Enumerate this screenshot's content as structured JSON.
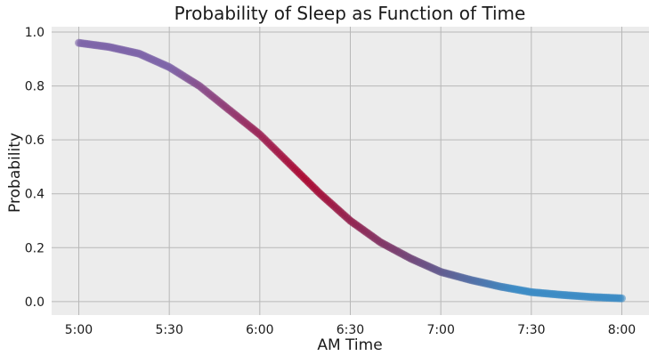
{
  "chart_data": {
    "type": "scatter",
    "title": "Probability of Sleep as Function of Time",
    "xlabel": "AM Time",
    "ylabel": "Probability",
    "x_unit": "minutes after 5:00",
    "xlim": [
      -9,
      189
    ],
    "ylim": [
      -0.05,
      1.02
    ],
    "x_ticks": [
      {
        "value": 0,
        "label": "5:00"
      },
      {
        "value": 30,
        "label": "5:30"
      },
      {
        "value": 60,
        "label": "6:00"
      },
      {
        "value": 90,
        "label": "6:30"
      },
      {
        "value": 120,
        "label": "7:00"
      },
      {
        "value": 150,
        "label": "7:30"
      },
      {
        "value": 180,
        "label": "8:00"
      }
    ],
    "y_ticks": [
      {
        "value": 0.0,
        "label": "0.0"
      },
      {
        "value": 0.2,
        "label": "0.2"
      },
      {
        "value": 0.4,
        "label": "0.4"
      },
      {
        "value": 0.6,
        "label": "0.6"
      },
      {
        "value": 0.8,
        "label": "0.8"
      },
      {
        "value": 1.0,
        "label": "1.0"
      }
    ],
    "grid": true,
    "background_color": "#ececec",
    "grid_color": "#b8b8b8",
    "colormap": [
      "#3a8ac4",
      "#a8002a",
      "#7b63a8"
    ],
    "points": [
      {
        "x": 0,
        "y": 0.96
      },
      {
        "x": 10,
        "y": 0.945
      },
      {
        "x": 20,
        "y": 0.92
      },
      {
        "x": 30,
        "y": 0.87
      },
      {
        "x": 40,
        "y": 0.8
      },
      {
        "x": 50,
        "y": 0.71
      },
      {
        "x": 60,
        "y": 0.62
      },
      {
        "x": 65,
        "y": 0.565
      },
      {
        "x": 70,
        "y": 0.51
      },
      {
        "x": 75,
        "y": 0.455
      },
      {
        "x": 80,
        "y": 0.4
      },
      {
        "x": 85,
        "y": 0.35
      },
      {
        "x": 90,
        "y": 0.3
      },
      {
        "x": 100,
        "y": 0.22
      },
      {
        "x": 110,
        "y": 0.16
      },
      {
        "x": 120,
        "y": 0.11
      },
      {
        "x": 130,
        "y": 0.08
      },
      {
        "x": 140,
        "y": 0.055
      },
      {
        "x": 150,
        "y": 0.035
      },
      {
        "x": 160,
        "y": 0.025
      },
      {
        "x": 170,
        "y": 0.017
      },
      {
        "x": 180,
        "y": 0.012
      }
    ]
  }
}
